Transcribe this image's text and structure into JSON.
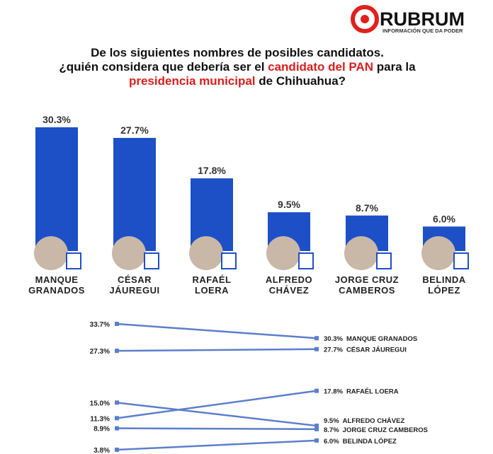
{
  "header": {
    "brand": "RUBRUM",
    "tagline": "INFORMACIÓN QUE DA PODER",
    "title": [
      {
        "text": "De los siguientes nombres de posibles candidatos.",
        "color": "#111"
      },
      {
        "text": "¿quién considera que debería ser el ",
        "color": "#111"
      },
      {
        "text": "candidato del PAN",
        "color": "#d81e1e"
      },
      {
        "text": " para la",
        "color": "#111"
      },
      {
        "text": "presidencia municipal",
        "color": "#d81e1e"
      },
      {
        "text": " de Chihuahua?",
        "color": "#111"
      }
    ]
  },
  "chart_data": [
    {
      "type": "bar",
      "color": "#1d50c6",
      "categories": [
        "MANQUE GRANADOS",
        "CÉSAR JÁUREGUI",
        "RAFAÉL LOERA",
        "ALFREDO CHÁVEZ",
        "JORGE CRUZ CAMBEROS",
        "BELINDA LÓPEZ"
      ],
      "values": [
        30.3,
        27.7,
        17.8,
        9.5,
        8.7,
        6.0
      ],
      "value_labels": [
        "30.3%",
        "27.7%",
        "17.8%",
        "9.5%",
        "8.7%",
        "6.0%"
      ]
    },
    {
      "type": "slope",
      "color": "#5b7fcb",
      "categories": [
        "MANQUE GRANADOS",
        "CÉSAR JÁUREGUI",
        "RAFAÉL LOERA",
        "ALFREDO CHÁVEZ",
        "JORGE CRUZ CAMBEROS",
        "BELINDA LÓPEZ"
      ],
      "series": [
        {
          "values": [
            33.7,
            27.3,
            11.3,
            15.0,
            8.9,
            3.8
          ],
          "value_labels": [
            "33.7%",
            "27.3%",
            "11.3%",
            "15.0%",
            "8.9%",
            "3.8%"
          ]
        },
        {
          "values": [
            30.3,
            27.7,
            17.8,
            9.5,
            8.7,
            6.0
          ],
          "value_labels": [
            "30.3%",
            "27.7%",
            "17.8%",
            "9.5%",
            "8.7%",
            "6.0%"
          ]
        }
      ]
    }
  ]
}
